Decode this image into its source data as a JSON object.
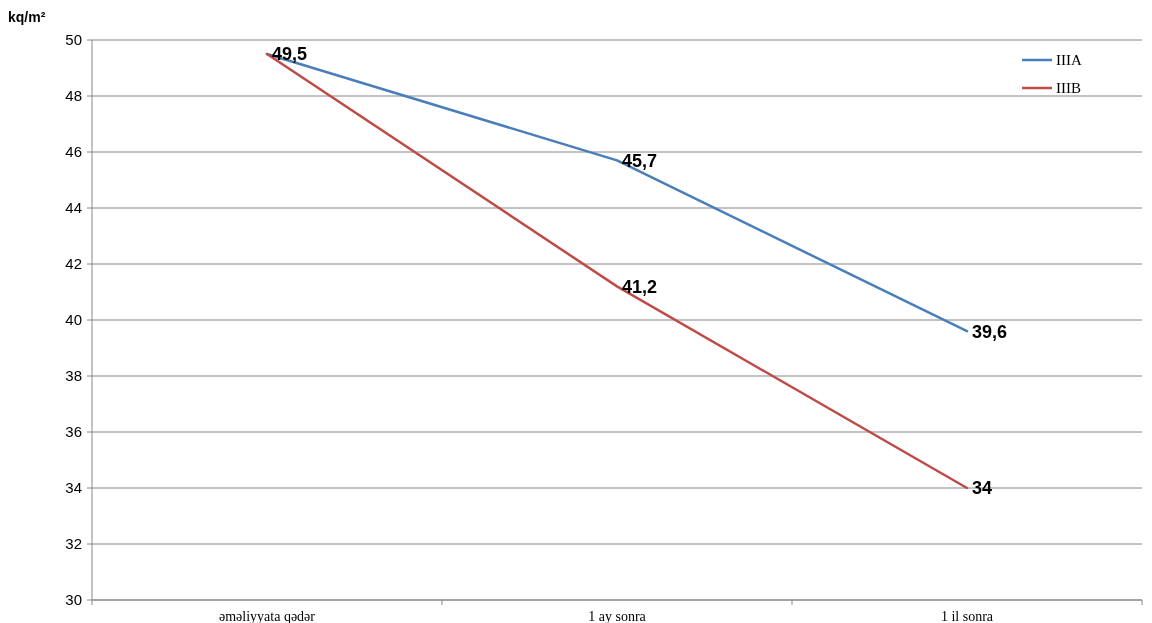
{
  "chart_data": {
    "type": "line",
    "ylabel": "kq/m²",
    "categories": [
      "əməliyyata qədər",
      "1 ay sonra",
      "1 il sonra"
    ],
    "series": [
      {
        "name": "IIIA",
        "color": "#4a7ebb",
        "values": [
          49.5,
          45.7,
          39.6
        ],
        "value_labels": [
          "49,5",
          "45,7",
          "39,6"
        ]
      },
      {
        "name": "IIIB",
        "color": "#be4b48",
        "values": [
          49.5,
          41.2,
          34
        ],
        "value_labels": [
          null,
          "41,2",
          "34"
        ]
      }
    ],
    "ylim": [
      30,
      50
    ],
    "yticks": [
      30,
      32,
      34,
      36,
      38,
      40,
      42,
      44,
      46,
      48,
      50
    ],
    "grid": "y",
    "legend": "top right",
    "marker": "none",
    "line_style": "solid"
  }
}
